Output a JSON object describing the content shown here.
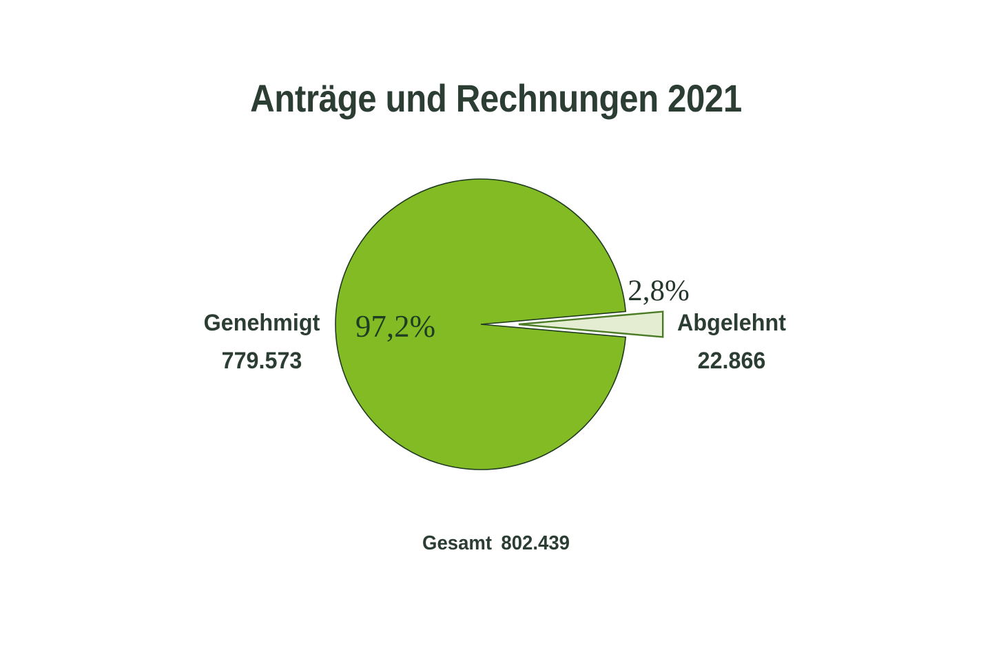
{
  "chart_data": {
    "type": "pie",
    "title": "Anträge und Rechnungen 2021",
    "categories": [
      "Genehmigt",
      "Abgelehnt"
    ],
    "values": [
      779573,
      22866
    ],
    "slices": [
      {
        "label": "Genehmigt",
        "value_label": "779.573",
        "percent": 97.2,
        "percent_label": "97,2%",
        "color": "#83bb25",
        "outline": "#1f3a20",
        "exploded": false
      },
      {
        "label": "Abgelehnt",
        "value_label": "22.866",
        "percent": 2.8,
        "percent_label": "2,8%",
        "color": "#e4edd2",
        "outline": "#4b7b25",
        "exploded": true
      }
    ],
    "total": {
      "label": "Gesamt",
      "value_label": "802.439",
      "value": 802439
    },
    "legend_position": "none",
    "background": "#ffffff"
  }
}
